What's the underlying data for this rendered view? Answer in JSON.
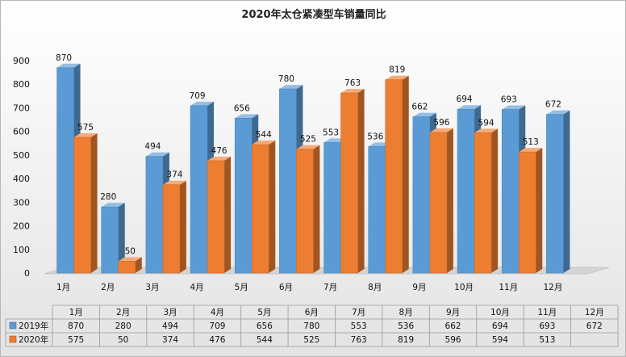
{
  "chart_data": {
    "type": "bar",
    "title": "2020年太仓紧凑型车销量同比",
    "categories": [
      "1月",
      "2月",
      "3月",
      "4月",
      "5月",
      "6月",
      "7月",
      "8月",
      "9月",
      "10月",
      "11月",
      "12月"
    ],
    "series": [
      {
        "name": "2019年",
        "values": [
          870,
          280,
          494,
          709,
          656,
          780,
          553,
          536,
          662,
          694,
          693,
          672
        ],
        "color": "#5b9bd5"
      },
      {
        "name": "2020年",
        "values": [
          575,
          50,
          374,
          476,
          544,
          525,
          763,
          819,
          596,
          594,
          513,
          null
        ],
        "color": "#ed7d31"
      }
    ],
    "ylim": [
      0,
      900
    ],
    "yticks": [
      0,
      100,
      200,
      300,
      400,
      500,
      600,
      700,
      800,
      900
    ],
    "grid": false,
    "data_table": true,
    "style": "3d-clustered-bar"
  }
}
